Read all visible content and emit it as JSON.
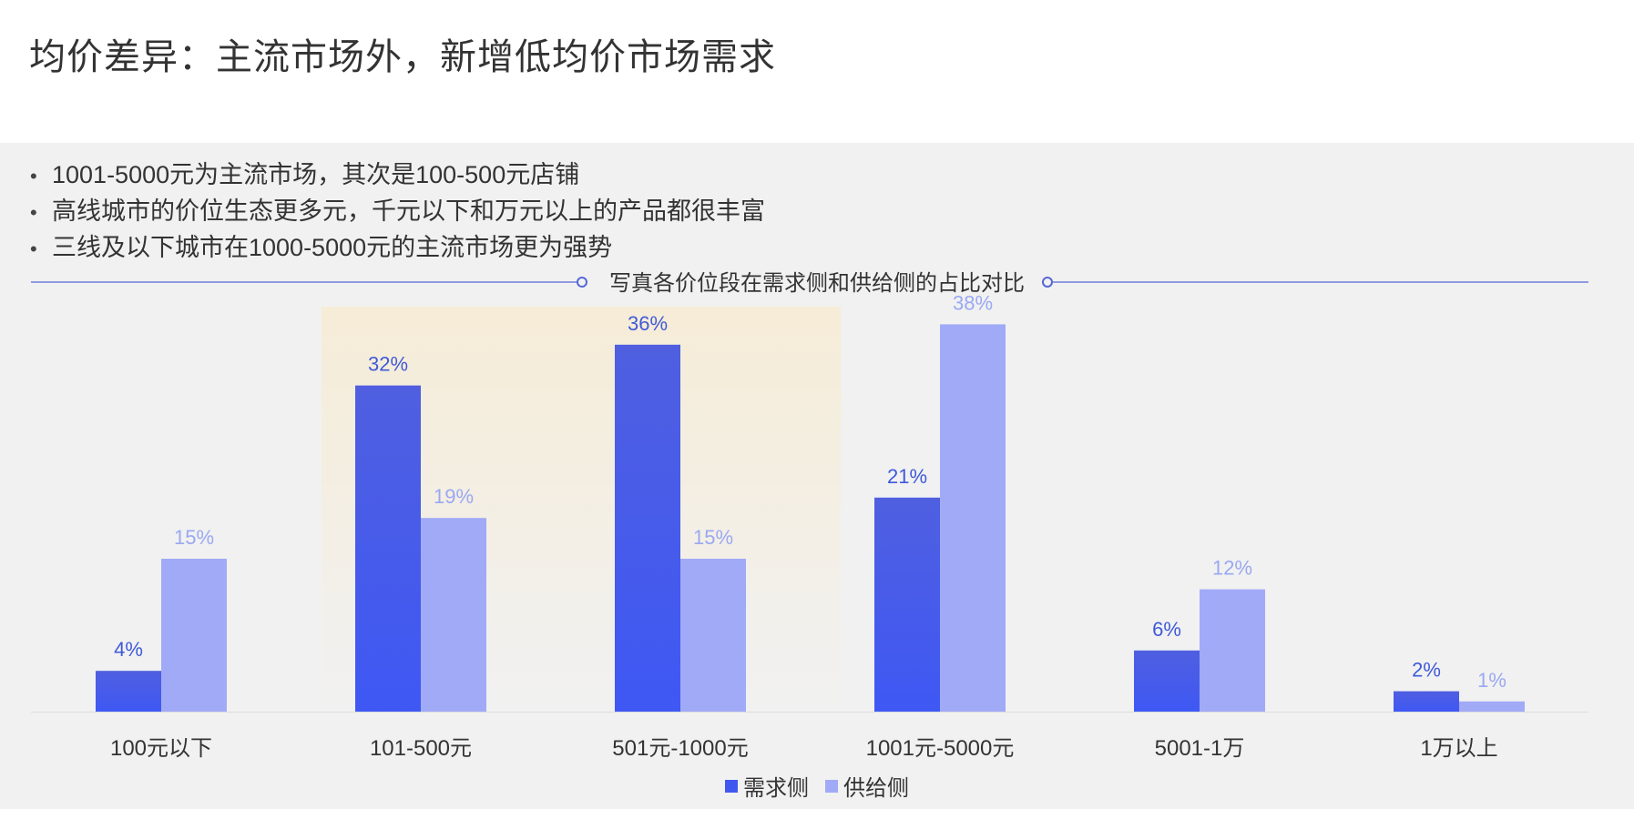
{
  "page": {
    "title": "均价差异：主流市场外，新增低均价市场需求",
    "bullets": [
      "1001-5000元为主流市场，其次是100-500元店铺",
      "高线城市的价位生态更多元，千元以下和万元以上的产品都很丰富",
      "三线及以下城市在1000-5000元的主流市场更为强势"
    ]
  },
  "chart_data": {
    "type": "bar",
    "title": "写真各价位段在需求侧和供给侧的占比对比",
    "categories": [
      "100元以下",
      "101-500元",
      "501元-1000元",
      "1001元-5000元",
      "5001-1万",
      "1万以上"
    ],
    "series": [
      {
        "name": "需求侧",
        "values": [
          4,
          32,
          36,
          21,
          6,
          2
        ],
        "labels": [
          "4%",
          "32%",
          "36%",
          "21%",
          "6%",
          "2%"
        ],
        "color": "#4158f0",
        "label_color": "#3f5ad8"
      },
      {
        "name": "供给侧",
        "values": [
          15,
          19,
          15,
          38,
          12,
          1
        ],
        "labels": [
          "15%",
          "19%",
          "15%",
          "38%",
          "12%",
          "1%"
        ],
        "color": "#a1aaf7",
        "label_color": "#9aa8f2"
      }
    ],
    "ylim": [
      0,
      40
    ],
    "grid": false,
    "legend": "bottom-center",
    "highlight_categories": [
      1,
      2
    ],
    "colors": {
      "title_line": "#5567d6",
      "highlight": "#f6ecd6"
    }
  }
}
